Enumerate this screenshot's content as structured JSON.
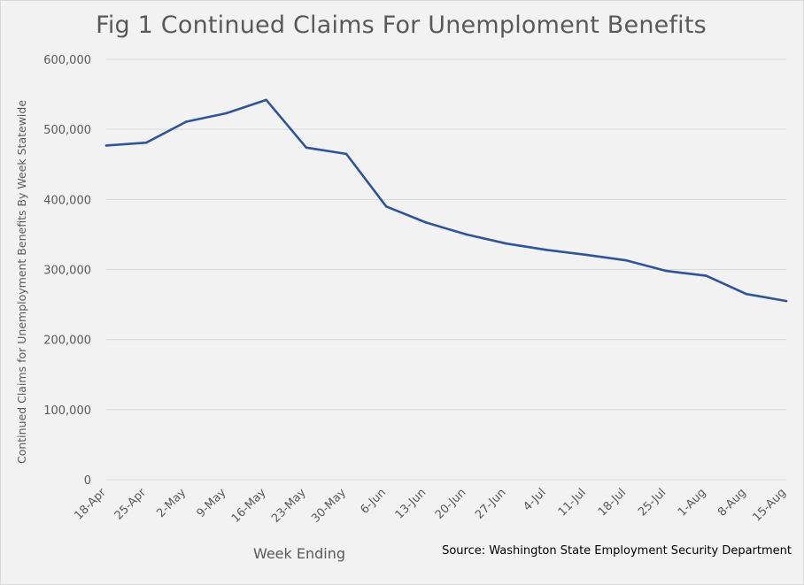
{
  "chart_data": {
    "type": "line",
    "title": "Fig 1 Continued Claims For Unemploment Benefits",
    "xlabel": "Week Ending",
    "ylabel": "Continued Claims for Unemployment  Benefits By Week Statewide",
    "categories": [
      "18-Apr",
      "25-Apr",
      "2-May",
      "9-May",
      "16-May",
      "23-May",
      "30-May",
      "6-Jun",
      "13-Jun",
      "20-Jun",
      "27-Jun",
      "4-Jul",
      "11-Jul",
      "18-Jul",
      "25-Jul",
      "1-Aug",
      "8-Aug",
      "15-Aug"
    ],
    "series": [
      {
        "values": [
          477000,
          481000,
          511000,
          523000,
          542000,
          474000,
          465000,
          390000,
          367000,
          350000,
          337000,
          328000,
          321000,
          313000,
          298000,
          291000,
          265000,
          255000
        ],
        "color": "#2f5597"
      }
    ],
    "ylim": [
      0,
      600000
    ],
    "yticks": [
      0,
      100000,
      200000,
      300000,
      400000,
      500000,
      600000
    ],
    "ytick_labels": [
      "0",
      "100,000",
      "200,000",
      "300,000",
      "400,000",
      "500,000",
      "600,000"
    ],
    "grid": true,
    "legend": "none",
    "source": "Source: Washington State Employment Security Department",
    "colors": {
      "background": "#f2f2f2",
      "gridline": "#d9d9d9",
      "axis_text": "#595959"
    }
  }
}
